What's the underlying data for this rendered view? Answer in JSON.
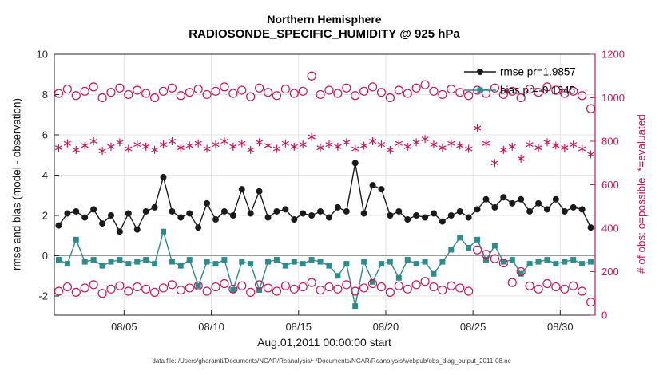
{
  "footer": {
    "text": "data file: /Users/gharamti/Documents/NCAR/Reanalysis/~/Documents/NCAR/Reanalysis/webpub/obs_diag_output_2011-08.nc"
  },
  "chart_data": {
    "type": "line",
    "title": "Northern Hemisphere",
    "subtitle": "RADIOSONDE_SPECIFIC_HUMIDITY @ 925 hPa",
    "xlabel": "Aug.01,2011 00:00:00 start",
    "ylabel_left": "rmse and bias (model - observation)",
    "ylabel_right": "# of obs: o=possible; *=evaluated",
    "x_range": [
      0,
      31
    ],
    "x": {
      "start": 0.25,
      "step": 0.5,
      "unit": "days after Aug 01 2011 00:00"
    },
    "x_ticks": [
      {
        "t": 4,
        "label": "08/05"
      },
      {
        "t": 9,
        "label": "08/10"
      },
      {
        "t": 14,
        "label": "08/15"
      },
      {
        "t": 19,
        "label": "08/20"
      },
      {
        "t": 24,
        "label": "08/25"
      },
      {
        "t": 29,
        "label": "08/30"
      }
    ],
    "y_left": {
      "min": -2.95,
      "max": 10,
      "ticks": [
        10,
        8,
        6,
        4,
        2,
        0,
        -2
      ]
    },
    "y_right": {
      "min": 0,
      "max": 1200,
      "ticks": [
        0,
        200,
        400,
        600,
        800,
        1000,
        1200
      ]
    },
    "grid": true,
    "colors": {
      "rmse": "#1a1a1a",
      "bias": "#2e8b8b",
      "obs": "#c2185b",
      "axis": "#262626",
      "grid": "#e4e4e4",
      "zero_line": "#9a9a9a"
    },
    "legend": [
      {
        "label": "rmse pr=1.9857",
        "marker": "filled-circle",
        "color_key": "rmse"
      },
      {
        "label": "bias pr=-0.1345",
        "marker": "filled-square",
        "color_key": "bias"
      }
    ],
    "series": [
      {
        "key": "rmse",
        "name": "rmse pr=1.9857",
        "marker": "filled-circle",
        "color_key": "rmse",
        "axis": "left",
        "line": true,
        "values": [
          1.5,
          2.1,
          2.2,
          1.9,
          2.3,
          1.6,
          2.0,
          1.2,
          2.1,
          1.3,
          2.2,
          2.4,
          3.9,
          2.2,
          1.9,
          2.1,
          1.4,
          2.6,
          1.8,
          2.2,
          2.0,
          3.3,
          2.1,
          3.2,
          1.9,
          2.2,
          2.3,
          1.8,
          2.1,
          2.0,
          2.2,
          1.9,
          2.4,
          2.2,
          4.6,
          2.1,
          3.5,
          3.3,
          2.0,
          2.2,
          1.8,
          2.0,
          1.9,
          2.1,
          1.7,
          2.0,
          2.2,
          1.9,
          2.3,
          2.8,
          2.4,
          2.9,
          2.6,
          2.8,
          2.2,
          2.6,
          2.3,
          2.8,
          2.2,
          2.4,
          2.3,
          1.4
        ]
      },
      {
        "key": "bias",
        "name": "bias pr=-0.1345",
        "marker": "filled-square",
        "color_key": "bias",
        "axis": "left",
        "line": true,
        "values": [
          -0.2,
          -0.4,
          0.8,
          -0.3,
          -0.2,
          -0.5,
          -0.3,
          -0.2,
          -0.4,
          -0.3,
          -0.2,
          -0.4,
          1.2,
          -0.3,
          -0.5,
          -0.2,
          -1.5,
          -0.3,
          -0.4,
          -0.2,
          -1.7,
          -0.3,
          -0.4,
          -1.7,
          -0.3,
          -0.2,
          -0.5,
          -0.3,
          -0.4,
          -0.2,
          -0.3,
          -0.5,
          -1.0,
          -0.4,
          -2.5,
          -0.3,
          -1.3,
          -0.4,
          -0.3,
          -1.1,
          -0.2,
          -0.4,
          -0.3,
          -0.9,
          -0.3,
          0.3,
          0.9,
          0.4,
          0.8,
          -0.2,
          0.5,
          -0.3,
          -0.2,
          -0.9,
          -0.4,
          -0.3,
          -0.2,
          -0.4,
          -0.3,
          -0.2,
          -0.4,
          -0.3
        ]
      },
      {
        "key": "obs_possible",
        "marker": "open-circle",
        "color_key": "obs",
        "axis": "right",
        "line": false,
        "values": [
          1020,
          1040,
          1010,
          1030,
          1050,
          1000,
          1025,
          1045,
          1015,
          1035,
          1020,
          1000,
          1030,
          1045,
          1010,
          1025,
          1040,
          1015,
          1030,
          1050,
          1020,
          1035,
          1005,
          1045,
          1025,
          1010,
          1040,
          1020,
          1030,
          1100,
          1015,
          1035,
          1020,
          1045,
          1010,
          1030,
          1050,
          1025,
          1000,
          1035,
          1020,
          1045,
          1060,
          1030,
          1015,
          1040,
          1025,
          1010,
          1035,
          1020,
          1045,
          1015,
          1030,
          1000,
          1040,
          1025,
          1050,
          1035,
          1020,
          1030,
          1010,
          950
        ]
      },
      {
        "key": "obs_evaluated",
        "marker": "asterisk",
        "color_key": "obs",
        "axis": "right",
        "line": false,
        "values": [
          770,
          790,
          760,
          780,
          800,
          755,
          775,
          795,
          765,
          785,
          775,
          760,
          785,
          800,
          770,
          780,
          790,
          765,
          785,
          800,
          775,
          790,
          760,
          795,
          780,
          765,
          790,
          775,
          785,
          820,
          770,
          785,
          775,
          795,
          765,
          780,
          800,
          785,
          760,
          790,
          775,
          795,
          810,
          785,
          770,
          790,
          780,
          765,
          860,
          790,
          700,
          760,
          775,
          720,
          785,
          770,
          795,
          780,
          770,
          785,
          765,
          740
        ]
      },
      {
        "key": "obs_low",
        "marker": "open-circle",
        "color_key": "obs",
        "axis": "right",
        "line": false,
        "values": [
          110,
          130,
          105,
          125,
          140,
          100,
          120,
          135,
          110,
          130,
          120,
          105,
          125,
          140,
          115,
          125,
          135,
          110,
          130,
          145,
          120,
          135,
          105,
          140,
          125,
          110,
          135,
          120,
          130,
          150,
          115,
          130,
          120,
          140,
          110,
          125,
          145,
          130,
          105,
          135,
          120,
          140,
          155,
          130,
          115,
          135,
          125,
          110,
          300,
          280,
          260,
          240,
          150,
          200,
          135,
          120,
          145,
          130,
          120,
          135,
          110,
          60
        ]
      }
    ]
  }
}
